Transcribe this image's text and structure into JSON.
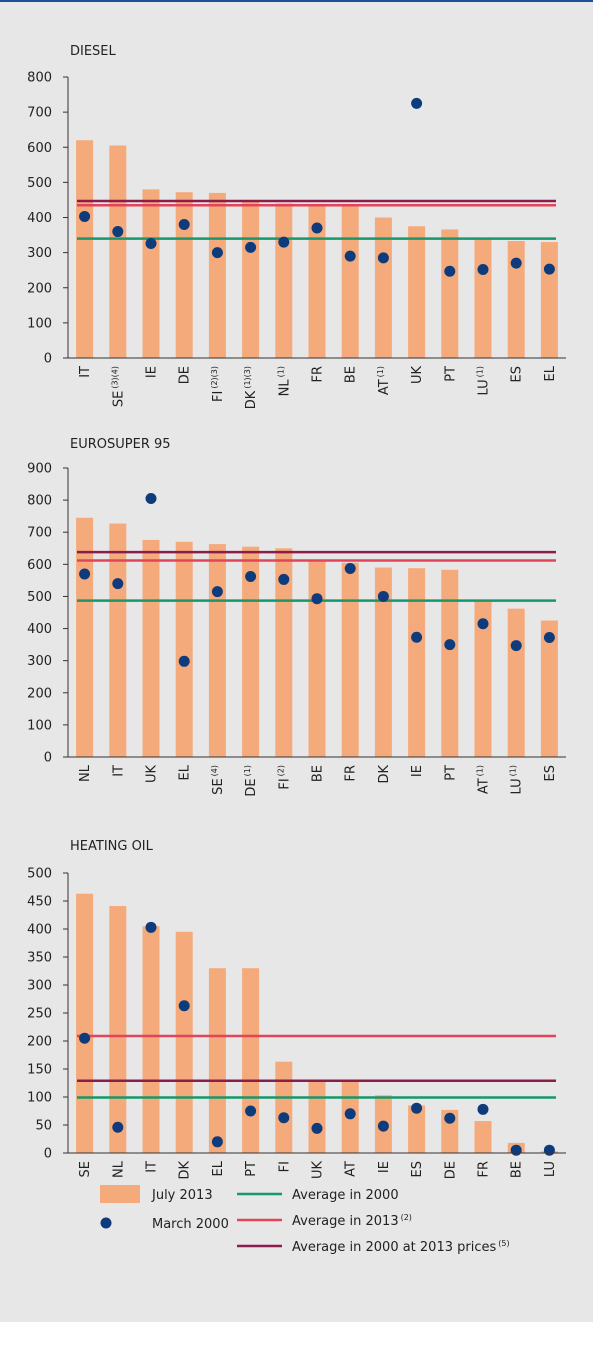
{
  "chart_data": [
    {
      "type": "bar",
      "title": "DIESEL",
      "categories": [
        "IT",
        "SE",
        "IE",
        "DE",
        "FI",
        "DK",
        "NL",
        "FR",
        "BE",
        "AT",
        "UK",
        "PT",
        "LU",
        "ES",
        "EL"
      ],
      "category_notes": [
        null,
        "(3)(4)",
        null,
        null,
        "(2)(3)",
        "(1)(3)",
        "(1)",
        null,
        null,
        "(1)",
        null,
        null,
        "(1)",
        null,
        null
      ],
      "series": [
        {
          "values": [
            620,
            605,
            480,
            472,
            470,
            447,
            440,
            432,
            432,
            400,
            375,
            366,
            340,
            333,
            330
          ]
        },
        {
          "values": [
            403,
            360,
            326,
            380,
            300,
            315,
            330,
            370,
            290,
            285,
            725,
            247,
            252,
            270,
            253
          ]
        }
      ],
      "averages": [
        340,
        435,
        447
      ],
      "ylim": [
        0,
        800
      ],
      "yticks": [
        0,
        100,
        200,
        300,
        400,
        500,
        600,
        700,
        800
      ]
    },
    {
      "type": "bar",
      "title": "EUROSUPER 95",
      "categories": [
        "NL",
        "IT",
        "UK",
        "EL",
        "SE",
        "DE",
        "FI",
        "BE",
        "FR",
        "DK",
        "IE",
        "PT",
        "AT",
        "LU",
        "ES"
      ],
      "category_notes": [
        null,
        null,
        null,
        null,
        "(4)",
        "(1)",
        "(2)",
        null,
        null,
        null,
        null,
        null,
        "(1)",
        "(1)",
        null
      ],
      "series": [
        {
          "values": [
            745,
            727,
            676,
            670,
            663,
            655,
            650,
            610,
            605,
            590,
            588,
            583,
            485,
            462,
            425
          ]
        },
        {
          "values": [
            570,
            540,
            805,
            298,
            515,
            562,
            553,
            493,
            587,
            500,
            373,
            350,
            415,
            347,
            372
          ]
        }
      ],
      "averages": [
        487,
        612,
        638
      ],
      "ylim": [
        0,
        900
      ],
      "yticks": [
        0,
        100,
        200,
        300,
        400,
        500,
        600,
        700,
        800,
        900
      ]
    },
    {
      "type": "bar",
      "title": "HEATING OIL",
      "categories": [
        "SE",
        "NL",
        "IT",
        "DK",
        "EL",
        "PT",
        "FI",
        "UK",
        "AT",
        "IE",
        "ES",
        "DE",
        "FR",
        "BE",
        "LU"
      ],
      "category_notes": [
        null,
        null,
        null,
        null,
        null,
        null,
        null,
        null,
        null,
        null,
        null,
        null,
        null,
        null,
        null
      ],
      "series": [
        {
          "values": [
            463,
            441,
            405,
            395,
            330,
            330,
            163,
            130,
            130,
            103,
            85,
            77,
            57,
            18,
            3
          ]
        },
        {
          "values": [
            205,
            46,
            403,
            263,
            20,
            75,
            63,
            44,
            70,
            48,
            80,
            62,
            78,
            5,
            5
          ]
        }
      ],
      "averages": [
        99,
        209,
        129
      ],
      "ylim": [
        0,
        500
      ],
      "yticks": [
        0,
        50,
        100,
        150,
        200,
        250,
        300,
        350,
        400,
        450,
        500
      ]
    }
  ],
  "legend": [
    {
      "name": "July 2013",
      "color": "#f5aa7b"
    },
    {
      "name": "March 2000",
      "color": "#0d3b7c"
    },
    {
      "name": "Average in 2000",
      "color": "#17976a"
    },
    {
      "name": "Average in 2013",
      "note": "(2)",
      "color": "#e2455a"
    },
    {
      "name": "Average in 2000 at 2013 prices",
      "note": "(5)",
      "color": "#8a1d4c"
    }
  ]
}
